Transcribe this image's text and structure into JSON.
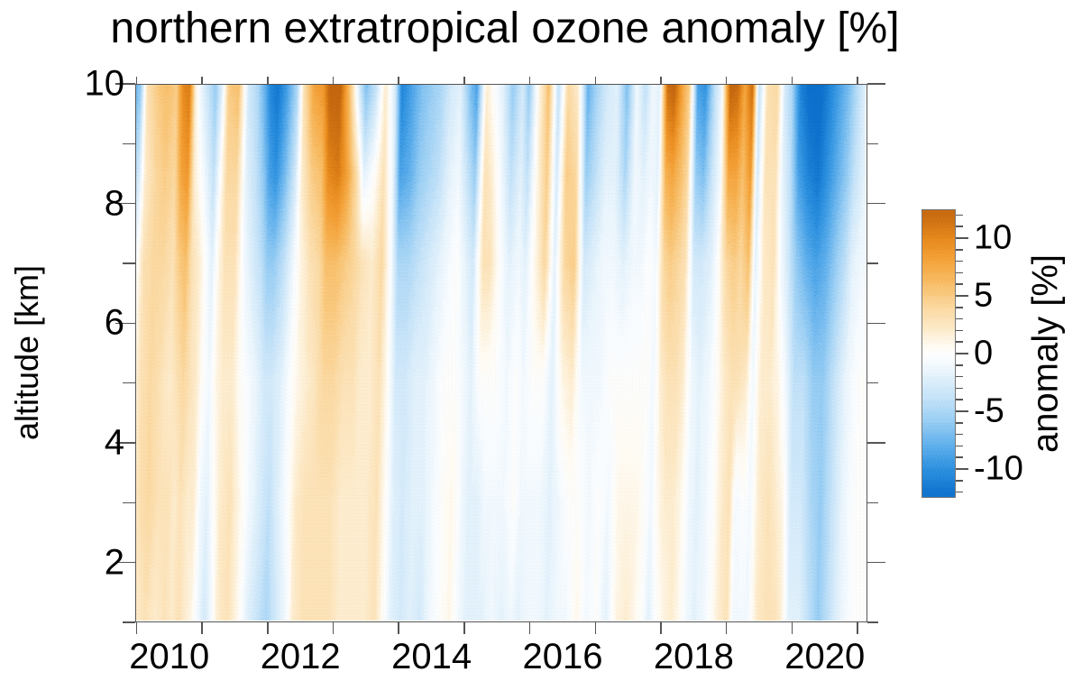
{
  "title": "northern extratropical ozone anomaly [%]",
  "y_axis": {
    "label": "altitude [km]",
    "range": [
      1,
      10
    ],
    "major_tick_values": [
      10,
      8,
      6,
      4,
      2
    ],
    "major_tick_labels": [
      "10",
      "8",
      "6",
      "4",
      "2"
    ],
    "minor_tick_step": 1
  },
  "x_axis": {
    "range_years": [
      2009.98,
      2021.15
    ],
    "tick_years": [
      2010,
      2011,
      2012,
      2013,
      2014,
      2015,
      2016,
      2017,
      2018,
      2019,
      2020,
      2021
    ],
    "labeled_years": [
      2010,
      2012,
      2014,
      2016,
      2018,
      2020
    ],
    "labels": [
      "2010",
      "2012",
      "2014",
      "2016",
      "2018",
      "2020"
    ]
  },
  "colorbar": {
    "label": "anomaly [%]",
    "range": [
      -12.5,
      12.5
    ],
    "major_tick_values": [
      10,
      5,
      0,
      -5,
      -10
    ],
    "major_tick_labels": [
      "10",
      "5",
      "0",
      "-5",
      "-10"
    ],
    "minor_tick_step": 1
  },
  "chart_data": {
    "type": "heatmap",
    "title": "northern extratropical ozone anomaly [%]",
    "xlabel": "year",
    "ylabel": "altitude [km]",
    "value_units": "anomaly [%]",
    "x_range": [
      2009.98,
      2021.15
    ],
    "y_range": [
      1,
      10
    ],
    "value_range": [
      -12.5,
      12.5
    ],
    "lean_years_per_km": 0.02,
    "altitudes": [
      1,
      3,
      5,
      7,
      8.5,
      10
    ],
    "times": [
      2009.97,
      2010.05,
      2010.15,
      2010.3,
      2010.45,
      2010.6,
      2010.7,
      2010.8,
      2010.9,
      2011.0,
      2011.1,
      2011.2,
      2011.3,
      2011.4,
      2011.55,
      2011.7,
      2011.85,
      2011.95,
      2012.05,
      2012.15,
      2012.3,
      2012.45,
      2012.55,
      2012.7,
      2012.85,
      2012.95,
      2013.1,
      2013.25,
      2013.4,
      2013.5,
      2013.65,
      2013.8,
      2013.95,
      2014.05,
      2014.2,
      2014.35,
      2014.5,
      2014.65,
      2014.8,
      2014.95,
      2015.1,
      2015.2,
      2015.35,
      2015.45,
      2015.6,
      2015.75,
      2015.9,
      2016.0,
      2016.15,
      2016.3,
      2016.45,
      2016.6,
      2016.75,
      2016.9,
      2017.05,
      2017.2,
      2017.35,
      2017.5,
      2017.65,
      2017.78,
      2017.9,
      2018.0,
      2018.12,
      2018.22,
      2018.35,
      2018.45,
      2018.58,
      2018.7,
      2018.85,
      2018.95,
      2019.08,
      2019.2,
      2019.3,
      2019.42,
      2019.52,
      2019.65,
      2019.8,
      2019.92,
      2020.02,
      2020.15,
      2020.3,
      2020.45,
      2020.6,
      2020.75,
      2020.9,
      2021.0,
      2021.15
    ],
    "values": [
      [
        -2,
        -1,
        0,
        -2,
        -5,
        -8
      ],
      [
        0,
        1,
        1,
        0,
        -3,
        -6
      ],
      [
        2,
        3,
        3,
        3,
        2,
        3
      ],
      [
        3,
        4,
        4,
        4,
        4,
        5
      ],
      [
        2,
        3,
        3,
        4,
        5,
        6
      ],
      [
        3,
        3,
        2,
        3,
        4,
        5
      ],
      [
        2,
        2,
        3,
        5,
        8,
        10
      ],
      [
        3,
        3,
        4,
        6,
        9,
        11
      ],
      [
        2,
        2,
        3,
        3,
        2,
        1
      ],
      [
        1,
        2,
        2,
        2,
        0,
        -2
      ],
      [
        -1,
        -1,
        0,
        0,
        -2,
        -4
      ],
      [
        -3,
        -2,
        -1,
        -2,
        -4,
        -6
      ],
      [
        -1,
        0,
        1,
        1,
        0,
        -2
      ],
      [
        2,
        2,
        2,
        3,
        4,
        5
      ],
      [
        3,
        3,
        2,
        3,
        4,
        6
      ],
      [
        1,
        1,
        0,
        -1,
        -2,
        -3
      ],
      [
        -2,
        -1,
        -1,
        -3,
        -4,
        -5
      ],
      [
        -3,
        -2,
        -2,
        -4,
        -6,
        -8
      ],
      [
        -4,
        -3,
        -3,
        -6,
        -9,
        -11
      ],
      [
        -5,
        -4,
        -3,
        -6,
        -10,
        -12
      ],
      [
        -3,
        -2,
        -2,
        -4,
        -7,
        -9
      ],
      [
        -1,
        0,
        0,
        -1,
        -3,
        -5
      ],
      [
        2,
        2,
        1,
        1,
        2,
        3
      ],
      [
        3,
        3,
        2,
        3,
        5,
        8
      ],
      [
        3,
        3,
        3,
        4,
        6,
        9
      ],
      [
        3,
        3,
        4,
        6,
        10,
        13
      ],
      [
        3,
        3,
        4,
        6,
        11,
        13
      ],
      [
        2,
        2,
        3,
        5,
        8,
        6
      ],
      [
        2,
        2,
        3,
        4,
        3,
        -3
      ],
      [
        2,
        2,
        2,
        3,
        -2,
        -7
      ],
      [
        2,
        2,
        2,
        2,
        0,
        -4
      ],
      [
        3,
        3,
        3,
        4,
        3,
        2
      ],
      [
        0,
        0,
        0,
        -1,
        -2,
        -3
      ],
      [
        -2,
        -2,
        -3,
        -5,
        -9,
        -11
      ],
      [
        -3,
        -3,
        -3,
        -5,
        -8,
        -9
      ],
      [
        -2,
        -2,
        -2,
        -4,
        -6,
        -7
      ],
      [
        -3,
        -2,
        -2,
        -3,
        -5,
        -6
      ],
      [
        -1,
        -1,
        -1,
        -2,
        -4,
        -5
      ],
      [
        0,
        0,
        0,
        -1,
        -2,
        -3
      ],
      [
        1,
        1,
        0,
        0,
        -1,
        -2
      ],
      [
        -1,
        -1,
        -1,
        -2,
        -4,
        -7
      ],
      [
        -2,
        -2,
        -2,
        -3,
        -6,
        -9
      ],
      [
        -2,
        -2,
        0,
        3,
        3,
        2
      ],
      [
        -2,
        -1,
        0,
        3,
        2,
        0
      ],
      [
        -1,
        -1,
        0,
        0,
        -1,
        -2
      ],
      [
        -2,
        -1,
        -1,
        -2,
        -4,
        -6
      ],
      [
        -1,
        0,
        0,
        -1,
        -2,
        -3
      ],
      [
        -2,
        -1,
        -1,
        -2,
        -4,
        -6
      ],
      [
        -1,
        -1,
        0,
        1,
        1,
        1
      ],
      [
        -1,
        -1,
        0,
        4,
        5,
        6
      ],
      [
        -2,
        -2,
        -2,
        -2,
        -3,
        -4
      ],
      [
        -1,
        -1,
        1,
        4,
        5,
        4
      ],
      [
        -1,
        0,
        2,
        5,
        4,
        2
      ],
      [
        1,
        0,
        -1,
        -3,
        -6,
        -8
      ],
      [
        -1,
        -1,
        -1,
        -2,
        -4,
        -5
      ],
      [
        0,
        0,
        -1,
        -1,
        -2,
        -3
      ],
      [
        -2,
        -1,
        0,
        -1,
        -2,
        -2
      ],
      [
        1,
        1,
        0,
        -2,
        -5,
        -7
      ],
      [
        2,
        1,
        0,
        -1,
        -1,
        -1
      ],
      [
        1,
        1,
        0,
        -1,
        -2,
        -4
      ],
      [
        0,
        0,
        0,
        0,
        -1,
        -1
      ],
      [
        -2,
        -1,
        -1,
        -1,
        -2,
        -2
      ],
      [
        0,
        1,
        2,
        4,
        7,
        12
      ],
      [
        1,
        2,
        3,
        5,
        8,
        13
      ],
      [
        2,
        2,
        3,
        4,
        6,
        8
      ],
      [
        1,
        1,
        2,
        3,
        4,
        5
      ],
      [
        -1,
        -1,
        -1,
        -3,
        -6,
        -9
      ],
      [
        -2,
        -2,
        -2,
        -3,
        -7,
        -10
      ],
      [
        -1,
        -1,
        -1,
        -2,
        -3,
        -4
      ],
      [
        0,
        0,
        0,
        0,
        -1,
        -1
      ],
      [
        2,
        2,
        2,
        4,
        8,
        13
      ],
      [
        3,
        3,
        3,
        5,
        8,
        12
      ],
      [
        -1,
        -1,
        3,
        4,
        6,
        8
      ],
      [
        -1,
        0,
        2,
        6,
        9,
        12
      ],
      [
        -1,
        -1,
        -1,
        -2,
        -3,
        -4
      ],
      [
        2,
        2,
        2,
        2,
        3,
        3
      ],
      [
        3,
        3,
        2,
        3,
        3,
        4
      ],
      [
        3,
        2,
        1,
        -1,
        -2,
        -3
      ],
      [
        2,
        1,
        -1,
        -3,
        -4,
        -5
      ],
      [
        -2,
        -3,
        -4,
        -6,
        -9,
        -11
      ],
      [
        -2,
        -3,
        -4,
        -8,
        -11,
        -13
      ],
      [
        -4,
        -5,
        -6,
        -9,
        -12,
        -13
      ],
      [
        -6,
        -6,
        -6,
        -8,
        -10,
        -11
      ],
      [
        -4,
        -4,
        -4,
        -6,
        -8,
        -9
      ],
      [
        -2,
        -2,
        -2,
        -4,
        -6,
        -7
      ],
      [
        -1,
        -1,
        -1,
        -2,
        -4,
        -5
      ],
      [
        0,
        0,
        0,
        -1,
        -2,
        -2
      ]
    ],
    "colormap_stops": [
      {
        "v": -12.5,
        "c": "#0a6ecb"
      },
      {
        "v": -10,
        "c": "#2f92e0"
      },
      {
        "v": -8,
        "c": "#60b0ec"
      },
      {
        "v": -6,
        "c": "#97cdf3"
      },
      {
        "v": -4,
        "c": "#c2e1f8"
      },
      {
        "v": -2,
        "c": "#e2f1fb"
      },
      {
        "v": -0.5,
        "c": "#fafdff"
      },
      {
        "v": 0,
        "c": "#ffffff"
      },
      {
        "v": 0.5,
        "c": "#fffdf8"
      },
      {
        "v": 2,
        "c": "#fdeccd"
      },
      {
        "v": 4,
        "c": "#fbd9a1"
      },
      {
        "v": 6,
        "c": "#f8bf6a"
      },
      {
        "v": 8,
        "c": "#f5a43c"
      },
      {
        "v": 10,
        "c": "#e78a1c"
      },
      {
        "v": 12.5,
        "c": "#c2650e"
      }
    ]
  }
}
